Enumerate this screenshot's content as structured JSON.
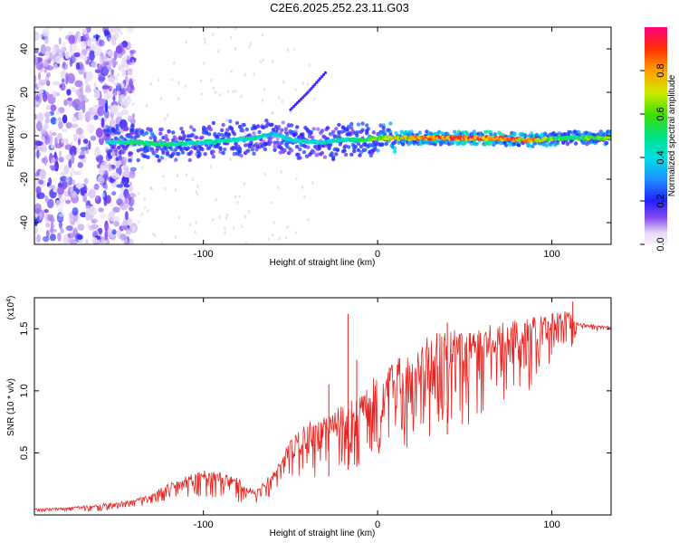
{
  "title": "C2E6.2025.252.23.11.G03",
  "colors": {
    "snr_line": "#e8231f",
    "spectrum_core": "#e8231f",
    "spectrum_halo": "#5a1fd6"
  },
  "chart_data": [
    {
      "type": "heatmap",
      "xlabel": "Height of straight line (km)",
      "ylabel": "Frequency (Hz)",
      "xlim": [
        -197,
        134
      ],
      "ylim": [
        -50,
        50
      ],
      "xticks": [
        -100,
        0,
        100
      ],
      "xtick_labels": [
        "-100",
        "0",
        "100"
      ],
      "yticks": [
        -40,
        -20,
        0,
        20,
        40
      ],
      "ytick_labels": [
        "-40",
        "-20",
        "0",
        "20",
        "40"
      ],
      "colorbar": {
        "label": "Normalized spectral amplitude",
        "range": [
          0,
          1
        ],
        "ticks": [
          0.0,
          0.2,
          0.4,
          0.6,
          0.8
        ],
        "tick_labels": [
          "0.0",
          "0.2",
          "0.4",
          "0.6",
          "0.8"
        ]
      },
      "ridge": {
        "description_free": true,
        "x": [
          -155,
          -140,
          -120,
          -100,
          -85,
          -70,
          -60,
          -50,
          -40,
          -30,
          -20,
          -10,
          0,
          10,
          30,
          60,
          90,
          110,
          134
        ],
        "freq": [
          -3,
          -3,
          -4,
          -3,
          -2,
          -1,
          1,
          -2,
          -3,
          -3,
          -2,
          -2,
          -1,
          -1,
          -1,
          -1,
          -2,
          -1,
          -1
        ],
        "amplitude": [
          0.45,
          0.6,
          0.55,
          0.5,
          0.55,
          0.5,
          0.45,
          0.5,
          0.5,
          0.45,
          0.55,
          0.6,
          0.7,
          0.85,
          0.95,
          1.0,
          0.9,
          0.6,
          0.8
        ]
      },
      "side_streak": {
        "x": [
          -50,
          -40,
          -30
        ],
        "freq": [
          12,
          20,
          29
        ]
      },
      "noise_region_xmax": -155
    },
    {
      "type": "line",
      "xlabel": "Height of straight line (km)",
      "ylabel": "SNR (10 * v/v)",
      "y_multiplier": "(x10",
      "y_multiplier_exp": "4",
      "y_multiplier_close": ")",
      "xlim": [
        -197,
        134
      ],
      "ylim": [
        0,
        17500
      ],
      "xticks": [
        -100,
        0,
        100
      ],
      "xtick_labels": [
        "-100",
        "0",
        "100"
      ],
      "yticks": [
        5000,
        10000,
        15000
      ],
      "ytick_labels": [
        "0.5",
        "1.0",
        "1.5"
      ],
      "series": [
        {
          "name": "SNR",
          "x": [
            -197,
            -180,
            -160,
            -140,
            -130,
            -120,
            -110,
            -100,
            -90,
            -80,
            -70,
            -60,
            -50,
            -40,
            -30,
            -20,
            -10,
            0,
            10,
            20,
            30,
            40,
            50,
            60,
            70,
            80,
            90,
            100,
            110,
            115,
            125,
            134
          ],
          "lower": [
            200,
            300,
            300,
            600,
            900,
            1200,
            1400,
            1500,
            1300,
            1000,
            900,
            1500,
            2500,
            2800,
            3000,
            3500,
            4000,
            4500,
            5000,
            5500,
            6000,
            6500,
            7000,
            7500,
            8000,
            9000,
            10500,
            12000,
            13000,
            15000,
            14800,
            14800
          ],
          "upper": [
            500,
            600,
            900,
            1200,
            1800,
            2500,
            3200,
            3600,
            3400,
            3000,
            2000,
            3500,
            6000,
            7500,
            8000,
            9000,
            9500,
            11500,
            12500,
            13500,
            14500,
            15000,
            15000,
            15200,
            15600,
            15800,
            16000,
            16200,
            16500,
            15500,
            15300,
            15200
          ],
          "spikes": [
            [
              -17,
              16200
            ],
            [
              112,
              17200
            ],
            [
              -12,
              12500
            ],
            [
              -28,
              10500
            ],
            [
              40,
              15500
            ]
          ]
        }
      ]
    }
  ]
}
